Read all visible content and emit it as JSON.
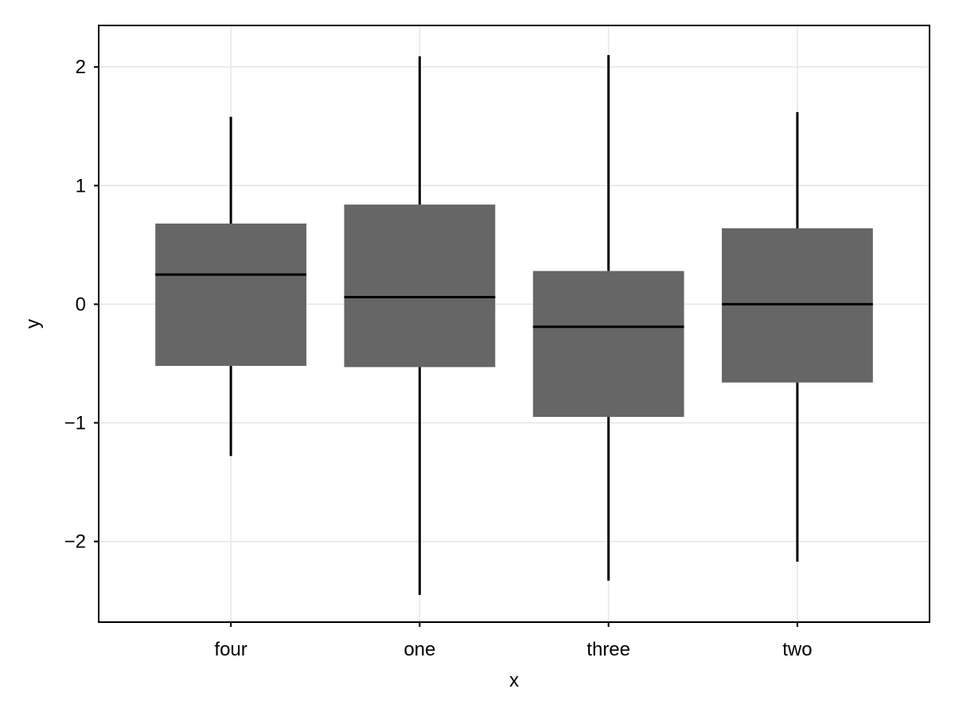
{
  "chart_data": {
    "type": "box",
    "categories": [
      "four",
      "one",
      "three",
      "two"
    ],
    "boxes": [
      {
        "category": "four",
        "whisker_low": -1.28,
        "q1": -0.52,
        "median": 0.25,
        "q3": 0.68,
        "whisker_high": 1.58
      },
      {
        "category": "one",
        "whisker_low": -2.45,
        "q1": -0.53,
        "median": 0.06,
        "q3": 0.84,
        "whisker_high": 2.09
      },
      {
        "category": "three",
        "whisker_low": -2.33,
        "q1": -0.95,
        "median": -0.19,
        "q3": 0.28,
        "whisker_high": 2.1
      },
      {
        "category": "two",
        "whisker_low": -2.17,
        "q1": -0.66,
        "median": 0.0,
        "q3": 0.64,
        "whisker_high": 1.62
      }
    ],
    "xlabel": "x",
    "ylabel": "y",
    "ylim": [
      -2.68,
      2.35
    ],
    "yticks": [
      2,
      1,
      0,
      -1,
      -2
    ],
    "ytick_labels": [
      "2",
      "1",
      "0",
      "−1",
      "−2"
    ],
    "grid": true,
    "colors": {
      "box_fill": "#666666",
      "median": "#000000",
      "whisker": "#000000",
      "grid": "#e5e5e5",
      "frame": "#000000"
    }
  }
}
